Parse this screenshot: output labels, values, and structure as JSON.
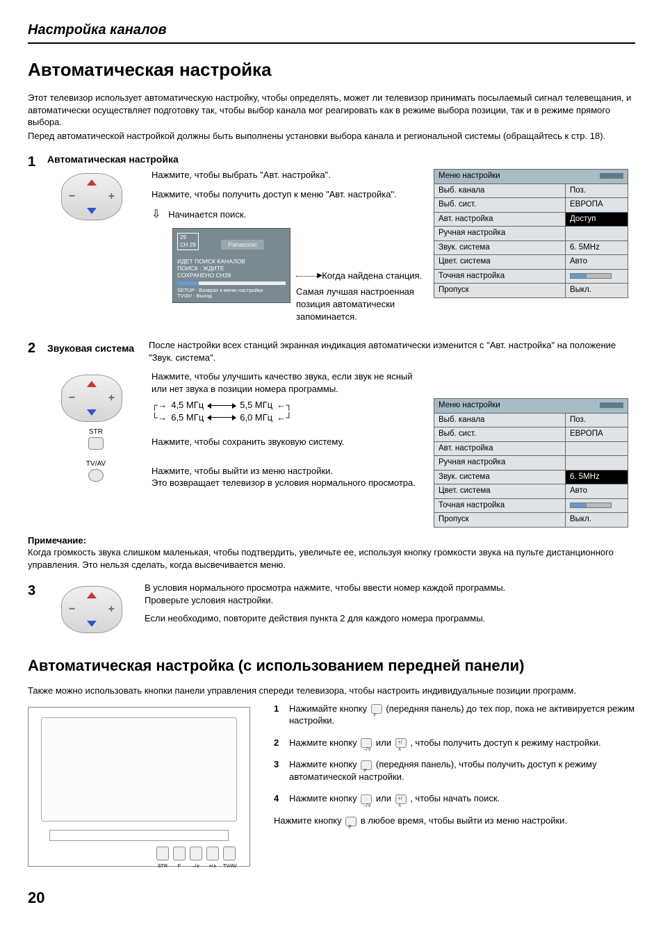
{
  "page": {
    "section_header": "Настройка каналов",
    "title1": "Автоматическая настройка",
    "intro": [
      "Этот телевизор использует автоматическую настройку, чтобы определять, может ли телевизор принимать посылаемый сигнал телевещания, и автоматически осуществляет подготовку так, чтобы выбор канала мог реагировать как в режиме выбора позиции, так и в режиме прямого выбора.",
      "Перед автоматической настройкой должны быть выполнены установки выбора канала и региональной системы (обращайтесь к стр. 18)."
    ],
    "step1": {
      "num": "1",
      "label": "Автоматическая настройка",
      "line1": "Нажмите, чтобы выбрать \"Авт. настройка\".",
      "line2": "Нажмите, чтобы получить доступ к меню \"Авт. настройка\".",
      "line3": "Начинается поиск.",
      "arrow_icon": "⇩",
      "found": "Когда найдена станция.",
      "best": "Самая лучшая настроенная позиция автоматически запоминается.",
      "tv_screen": {
        "ch": "29\nCH 29",
        "brand": "Panasonic",
        "search1": "ИДЕТ ПОИСК КАНАЛОВ",
        "search2": "ПОИСК : ЖДИТЕ",
        "search3": "СОХРАНЕНО CH29",
        "footer1": "SETUP  : Возврат к меню настройки",
        "footer2": "TV/AV   : Выход"
      }
    },
    "step2": {
      "num": "2",
      "label": "Звуковая система",
      "line1": "После настройки всех станций экранная индикация автоматически изменится с \"Авт. настройка\" на положение \"Звук. система\".",
      "line2": "Нажмите, чтобы улучшить качество звука, если звук не ясный или нет звука в позиции номера программы.",
      "freq": [
        "4,5 МГц",
        "5,5 МГц",
        "6,5 МГц",
        "6,0 МГц"
      ],
      "str_label": "STR",
      "str_text": "Нажмите, чтобы сохранить звуковую систему.",
      "tvav_label": "TV/AV",
      "tvav_text1": "Нажмите, чтобы выйти из меню настройки.",
      "tvav_text2": "Это возвращает телевизор в условия нормального просмотра."
    },
    "note": {
      "title": "Примечание:",
      "text": "Когда громкость звука слишком маленькая, чтобы подтвердить, увеличьте ее, используя кнопку громкости звука на пульте дистанционного управления. Это нельзя сделать, когда высвечивается меню."
    },
    "step3": {
      "num": "3",
      "line1": "В условия нормального просмотра нажмите, чтобы ввести номер каждой программы.",
      "line2": "Проверьте условия настройки.",
      "line3": "Если необходимо, повторите действия пункта 2 для каждого номера программы."
    },
    "title2": "Автоматическая настройка (с использованием передней панели)",
    "panel_intro": "Также можно использовать кнопки панели управления спереди телевизора, чтобы настроить индивидуальные позиции программ.",
    "panel_steps": [
      {
        "n": "1",
        "t_pre": "Нажимайте кнопку ",
        "t_post": " (передняя панель) до тех пор, пока не активируется режим настройки.",
        "sub": "F"
      },
      {
        "n": "2",
        "t_pre": "Нажмите кнопку ",
        "t_mid": " или ",
        "t_post": " , чтобы получить доступ к режиму настройки.",
        "sub1": "–/∨",
        "sub2": "+/∧"
      },
      {
        "n": "3",
        "t_pre": "Нажмите кнопку ",
        "t_post": " (передняя панель), чтобы получить доступ к режиму автоматической настройки.",
        "sub": "F"
      },
      {
        "n": "4",
        "t_pre": "Нажмите кнопку ",
        "t_mid": " или ",
        "t_post": " , чтобы начать поиск.",
        "sub1": "–/∨",
        "sub2": "+/∧"
      }
    ],
    "panel_exit_pre": "Нажмите кнопку ",
    "panel_exit_post": " в любое время, чтобы выйти из меню настройки.",
    "panel_exit_sub": "F",
    "front_btn_labels": [
      "STR",
      "F",
      "–/∨",
      "+/∧",
      "TV/AV"
    ],
    "menu1": {
      "title": "Меню настройки",
      "rows": [
        {
          "label": "Выб. канала",
          "val": "Поз."
        },
        {
          "label": "Выб. сист.",
          "val": "ЕВРОПА"
        },
        {
          "label": "Авт. настройка",
          "val": "Доступ",
          "selected": true
        },
        {
          "label": "Ручная настройка",
          "val": ""
        },
        {
          "label": "Звук. система",
          "val": "6. 5MHz"
        },
        {
          "label": "Цвет. система",
          "val": "Авто"
        },
        {
          "label": "Точная настройка",
          "val": "[slider]"
        },
        {
          "label": "Пропуск",
          "val": "Выкл."
        }
      ]
    },
    "menu2": {
      "title": "Меню настройки",
      "rows": [
        {
          "label": "Выб. канала",
          "val": "Поз."
        },
        {
          "label": "Выб. сист.",
          "val": "ЕВРОПА"
        },
        {
          "label": "Авт. настройка",
          "val": ""
        },
        {
          "label": "Ручная настройка",
          "val": ""
        },
        {
          "label": "Звук. система",
          "val": "6. 5MHz",
          "selected": true
        },
        {
          "label": "Цвет. система",
          "val": "Авто"
        },
        {
          "label": "Точная настройка",
          "val": "[slider]"
        },
        {
          "label": "Пропуск",
          "val": "Выкл."
        }
      ]
    },
    "page_number": "20"
  },
  "colors": {
    "menu_header_bg": "#a8bcc7",
    "menu_cell_bg": "#dde3e7",
    "menu_selected_bg": "#000000",
    "menu_selected_fg": "#ffffff",
    "tv_screen_bg": "#7a8a93"
  }
}
